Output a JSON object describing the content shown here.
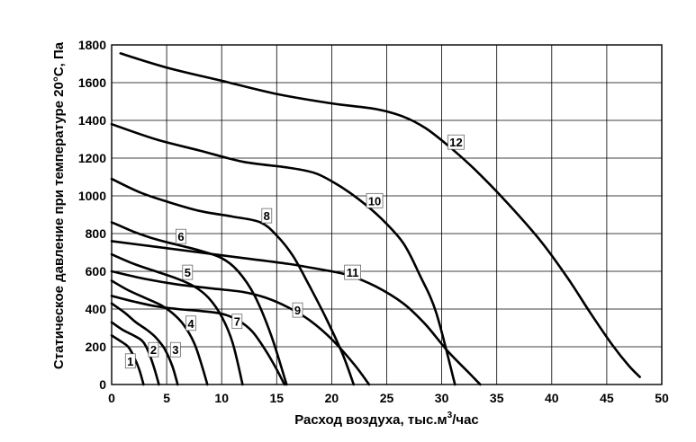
{
  "chart_data": {
    "type": "line",
    "xlabel": "Расход воздуха, тыс.м³/час",
    "xlabel_main": "Расход воздуха, тыс.м",
    "xlabel_sup": "3",
    "xlabel_tail": "/час",
    "ylabel": "Статическое давление при температуре 20°С, Па",
    "xlim": [
      0,
      50
    ],
    "ylim": [
      0,
      1800
    ],
    "xticks": [
      0,
      5,
      10,
      15,
      20,
      25,
      30,
      35,
      40,
      45,
      50
    ],
    "yticks": [
      0,
      200,
      400,
      600,
      800,
      1000,
      1200,
      1400,
      1600,
      1800
    ],
    "grid": true,
    "series": [
      {
        "name": "1",
        "label_at": [
          1.7,
          120
        ],
        "points": [
          [
            0,
            260
          ],
          [
            0.8,
            230
          ],
          [
            1.5,
            200
          ],
          [
            2.0,
            150
          ],
          [
            2.5,
            80
          ],
          [
            2.9,
            0
          ]
        ]
      },
      {
        "name": "2",
        "label_at": [
          3.8,
          180
        ],
        "points": [
          [
            0,
            330
          ],
          [
            1.0,
            290
          ],
          [
            2.0,
            260
          ],
          [
            2.8,
            230
          ],
          [
            3.3,
            180
          ],
          [
            3.8,
            100
          ],
          [
            4.3,
            0
          ]
        ]
      },
      {
        "name": "3",
        "label_at": [
          5.8,
          180
        ],
        "points": [
          [
            0,
            430
          ],
          [
            1.2,
            380
          ],
          [
            2.2,
            330
          ],
          [
            3.2,
            290
          ],
          [
            4.0,
            250
          ],
          [
            4.8,
            190
          ],
          [
            5.5,
            100
          ],
          [
            6.0,
            0
          ]
        ]
      },
      {
        "name": "4",
        "label_at": [
          7.2,
          320
        ],
        "points": [
          [
            0,
            550
          ],
          [
            1.5,
            500
          ],
          [
            3.0,
            460
          ],
          [
            4.5,
            420
          ],
          [
            5.5,
            380
          ],
          [
            6.5,
            320
          ],
          [
            7.5,
            220
          ],
          [
            8.2,
            100
          ],
          [
            8.7,
            0
          ]
        ]
      },
      {
        "name": "5",
        "label_at": [
          6.9,
          590
        ],
        "points": [
          [
            0,
            690
          ],
          [
            2.0,
            640
          ],
          [
            4.0,
            600
          ],
          [
            6.0,
            560
          ],
          [
            7.5,
            520
          ],
          [
            8.8,
            460
          ],
          [
            10.0,
            360
          ],
          [
            11.0,
            220
          ],
          [
            11.9,
            0
          ]
        ]
      },
      {
        "name": "6",
        "label_at": [
          6.3,
          780
        ],
        "points": [
          [
            0,
            860
          ],
          [
            2.0,
            810
          ],
          [
            4.0,
            770
          ],
          [
            6.0,
            740
          ],
          [
            8.0,
            710
          ],
          [
            10.0,
            670
          ],
          [
            11.5,
            600
          ],
          [
            13.0,
            470
          ],
          [
            14.5,
            260
          ],
          [
            15.9,
            0
          ]
        ]
      },
      {
        "name": "7",
        "label_at": [
          11.4,
          330
        ],
        "points": [
          [
            0,
            470
          ],
          [
            2.0,
            440
          ],
          [
            4.0,
            415
          ],
          [
            6.0,
            400
          ],
          [
            8.0,
            390
          ],
          [
            10.0,
            375
          ],
          [
            11.5,
            340
          ],
          [
            12.8,
            280
          ],
          [
            14.0,
            180
          ],
          [
            15.0,
            80
          ],
          [
            15.7,
            0
          ]
        ]
      },
      {
        "name": "8",
        "label_at": [
          14.1,
          890
        ],
        "points": [
          [
            0,
            1090
          ],
          [
            2.5,
            1020
          ],
          [
            5.0,
            970
          ],
          [
            8.0,
            920
          ],
          [
            11.0,
            890
          ],
          [
            13.5,
            860
          ],
          [
            15.0,
            790
          ],
          [
            16.5,
            680
          ],
          [
            18.0,
            520
          ],
          [
            19.5,
            350
          ],
          [
            21.0,
            160
          ],
          [
            22.0,
            0
          ]
        ]
      },
      {
        "name": "9",
        "label_at": [
          16.9,
          390
        ],
        "points": [
          [
            0,
            600
          ],
          [
            3.0,
            560
          ],
          [
            6.0,
            530
          ],
          [
            9.0,
            510
          ],
          [
            12.0,
            490
          ],
          [
            14.0,
            460
          ],
          [
            16.0,
            410
          ],
          [
            18.0,
            340
          ],
          [
            20.0,
            240
          ],
          [
            22.0,
            110
          ],
          [
            23.4,
            0
          ]
        ]
      },
      {
        "name": "10",
        "label_at": [
          23.9,
          970
        ],
        "points": [
          [
            0,
            1380
          ],
          [
            4.0,
            1300
          ],
          [
            8.0,
            1240
          ],
          [
            12.0,
            1180
          ],
          [
            16.0,
            1150
          ],
          [
            18.5,
            1120
          ],
          [
            20.5,
            1060
          ],
          [
            22.5,
            980
          ],
          [
            24.5,
            880
          ],
          [
            26.5,
            750
          ],
          [
            28.0,
            580
          ],
          [
            29.5,
            380
          ],
          [
            31.2,
            0
          ]
        ]
      },
      {
        "name": "11",
        "label_at": [
          21.9,
          590
        ],
        "points": [
          [
            0,
            760
          ],
          [
            4.0,
            730
          ],
          [
            8.0,
            700
          ],
          [
            12.0,
            670
          ],
          [
            16.0,
            640
          ],
          [
            19.0,
            610
          ],
          [
            21.5,
            580
          ],
          [
            24.0,
            520
          ],
          [
            26.5,
            430
          ],
          [
            28.5,
            320
          ],
          [
            30.5,
            180
          ],
          [
            32.5,
            60
          ],
          [
            33.5,
            0
          ]
        ]
      },
      {
        "name": "12",
        "label_at": [
          31.3,
          1280
        ],
        "points": [
          [
            0.8,
            1755
          ],
          [
            5.0,
            1680
          ],
          [
            10.0,
            1610
          ],
          [
            15.0,
            1540
          ],
          [
            20.0,
            1490
          ],
          [
            24.0,
            1460
          ],
          [
            26.5,
            1420
          ],
          [
            28.5,
            1360
          ],
          [
            30.5,
            1270
          ],
          [
            33.0,
            1140
          ],
          [
            36.0,
            960
          ],
          [
            39.0,
            760
          ],
          [
            41.5,
            560
          ],
          [
            43.5,
            380
          ],
          [
            45.5,
            210
          ],
          [
            47.0,
            100
          ],
          [
            48.0,
            40
          ]
        ]
      }
    ]
  }
}
